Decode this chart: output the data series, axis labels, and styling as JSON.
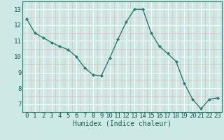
{
  "x": [
    0,
    1,
    2,
    3,
    4,
    5,
    6,
    7,
    8,
    9,
    10,
    11,
    12,
    13,
    14,
    15,
    16,
    17,
    18,
    19,
    20,
    21,
    22,
    23
  ],
  "y": [
    12.4,
    11.5,
    11.2,
    10.9,
    10.65,
    10.45,
    10.0,
    9.3,
    8.85,
    8.8,
    9.9,
    11.1,
    12.2,
    13.0,
    13.0,
    11.5,
    10.65,
    10.2,
    9.7,
    8.3,
    7.3,
    6.7,
    7.3,
    7.4
  ],
  "xlabel": "Humidex (Indice chaleur)",
  "ylim": [
    6.5,
    13.5
  ],
  "xlim": [
    -0.5,
    23.5
  ],
  "yticks": [
    7,
    8,
    9,
    10,
    11,
    12,
    13
  ],
  "xticks": [
    0,
    1,
    2,
    3,
    4,
    5,
    6,
    7,
    8,
    9,
    10,
    11,
    12,
    13,
    14,
    15,
    16,
    17,
    18,
    19,
    20,
    21,
    22,
    23
  ],
  "line_color": "#2a7d6f",
  "marker_color": "#2a7d6f",
  "bg_color": "#cce9e6",
  "grid_major_color": "#ffffff",
  "grid_minor_color": "#e8b8b8",
  "xlabel_fontsize": 7,
  "tick_fontsize": 6.5,
  "label_color": "#1a5c52"
}
